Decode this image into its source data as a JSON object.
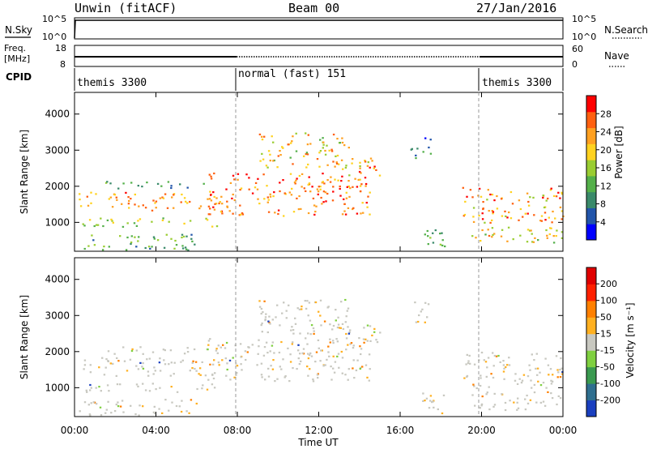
{
  "header": {
    "radar": "Unwin (fitACF)",
    "beam": "Beam 00",
    "date": "27/Jan/2016"
  },
  "nsky_panel": {
    "label": "N.Sky",
    "right_label": "N.Search",
    "tick_top": "10^5",
    "tick_bottom": "10^0",
    "right_tick_top": "10^5",
    "right_tick_bottom": "10^0"
  },
  "freq_panel": {
    "label_line1": "Freq.",
    "label_line2": "[MHz]",
    "tick_top": "18",
    "tick_bottom": "8",
    "right_label": "Nave",
    "right_tick_top": "60",
    "right_tick_bottom": "0"
  },
  "cpid_panel": {
    "label": "CPID",
    "modes": [
      "themis 3300",
      "normal (fast) 151",
      "themis 3300"
    ]
  },
  "chart_data": [
    {
      "type": "heatmap",
      "name": "power",
      "ylabel": "Slant Range [km]",
      "yticks": [
        "1000",
        "2000",
        "3000",
        "4000"
      ],
      "ylim": [
        200,
        4600
      ],
      "xlim": [
        0,
        24
      ],
      "colorbar_label": "Power [dB]",
      "colorbar_ticks": [
        "4",
        "8",
        "12",
        "16",
        "20",
        "24",
        "28"
      ],
      "colorbar_range": [
        0,
        32
      ],
      "colors": [
        "#0000ff",
        "#2255aa",
        "#3a8a6a",
        "#54b04a",
        "#9acd32",
        "#ffd21f",
        "#ffa020",
        "#ff6010",
        "#ff0000"
      ]
    },
    {
      "type": "heatmap",
      "name": "velocity",
      "ylabel": "Slant Range [km]",
      "yticks": [
        "1000",
        "2000",
        "3000",
        "4000"
      ],
      "ylim": [
        200,
        4600
      ],
      "xlim": [
        0,
        24
      ],
      "colorbar_label": "Velocity [m s⁻¹]",
      "colorbar_ticks": [
        "200",
        "100",
        "50",
        "15",
        "-15",
        "-50",
        "-100",
        "-200"
      ],
      "colors": [
        "#1a3fbf",
        "#2f6f8f",
        "#3a9a50",
        "#7fd040",
        "#c8c8c0",
        "#ffb020",
        "#ff8000",
        "#ff2000",
        "#e00000"
      ]
    }
  ],
  "time_axis": {
    "label": "Time UT",
    "ticks": [
      "00:00",
      "04:00",
      "08:00",
      "12:00",
      "16:00",
      "20:00",
      "00:00"
    ]
  }
}
